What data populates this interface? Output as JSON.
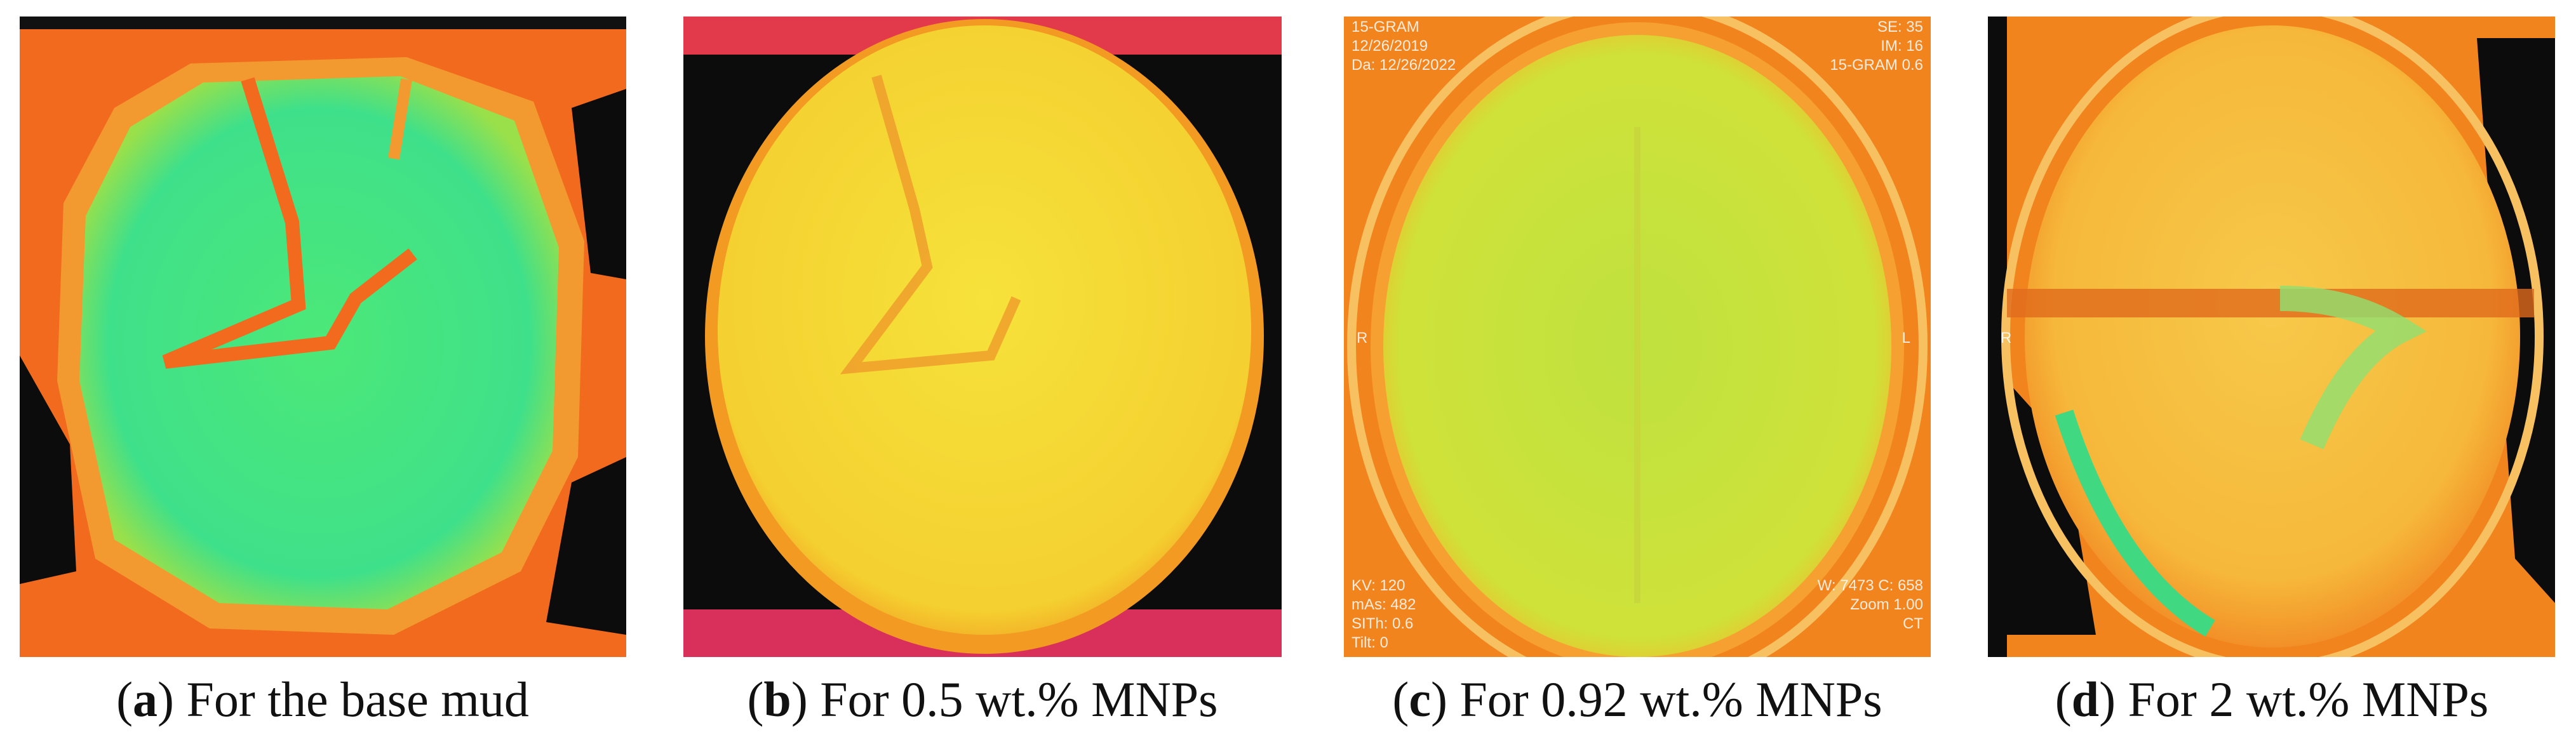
{
  "figure": {
    "panels": [
      {
        "caption": {
          "open": "(",
          "label": "a",
          "rest": ") For the base mud"
        }
      },
      {
        "caption": {
          "open": "(",
          "label": "b",
          "rest": ") For 0.5 wt.% MNPs"
        }
      },
      {
        "caption": {
          "open": "(",
          "label": "c",
          "rest": ") For 0.92 wt.% MNPs"
        },
        "overlay": {
          "top_left": [
            "15-GRAM",
            "12/26/2019",
            "Da: 12/26/2022"
          ],
          "top_right": [
            "SE: 35",
            "IM: 16",
            "15-GRAM 0.6"
          ],
          "left_marker": "R",
          "right_marker": "L",
          "bottom_left": [
            "KV: 120",
            "mAs: 482",
            "SITh: 0.6",
            "Tilt: 0"
          ],
          "bottom_right": [
            "W: 7473 C: 658",
            "Zoom 1.00",
            "CT"
          ]
        }
      },
      {
        "caption": {
          "open": "(",
          "label": "d",
          "rest": ") For 2 wt.% MNPs"
        },
        "overlay": {
          "left_marker": "R"
        }
      }
    ]
  }
}
